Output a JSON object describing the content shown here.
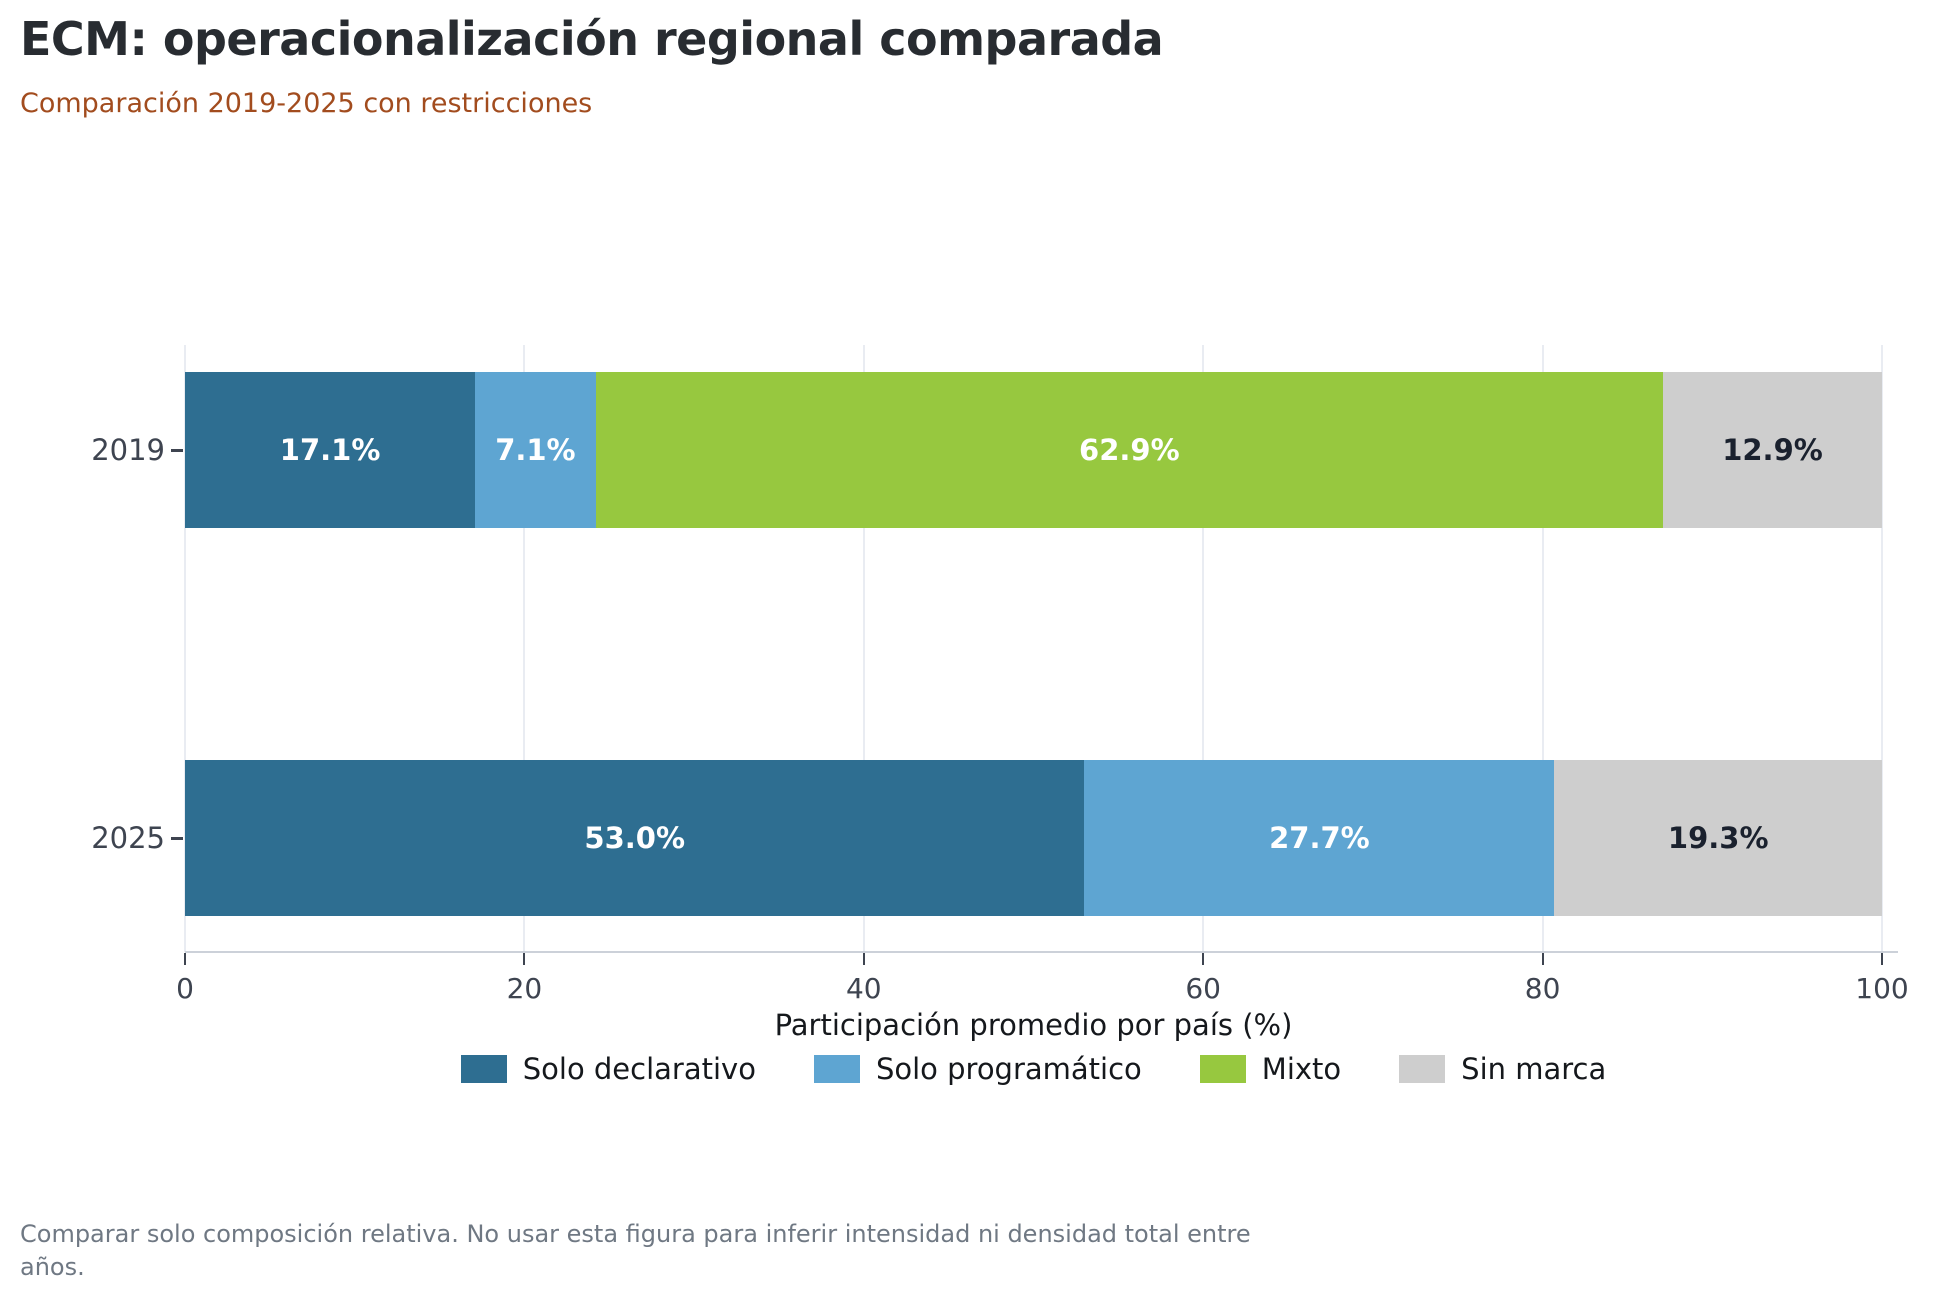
{
  "title": "ECM: operacionalización regional comparada",
  "subtitle": "Comparación 2019-2025 con restricciones",
  "footer": "Comparar solo composición relativa. No usar esta figura para inferir intensidad ni densidad total entre años.",
  "colors": {
    "title_text": "#282c31",
    "subtitle_text": "#a24c1e",
    "axis_text": "#3e4450",
    "gridline": "#e9ecf2",
    "axis_line": "#ccd1d9",
    "footer_text": "#6f7883"
  },
  "chart_data": {
    "type": "bar",
    "orientation": "horizontal",
    "stacked": true,
    "title": "ECM: operacionalización regional comparada",
    "subtitle": "Comparación 2019-2025 con restricciones",
    "categories": [
      "2019",
      "2025"
    ],
    "series": [
      {
        "name": "Solo declarativo",
        "color": "#2e6e91",
        "label_color": "#ffffff",
        "values": [
          17.1,
          53.0
        ]
      },
      {
        "name": "Solo programático",
        "color": "#5ea5d2",
        "label_color": "#ffffff",
        "values": [
          7.1,
          27.7
        ]
      },
      {
        "name": "Mixto",
        "color": "#97c83f",
        "label_color": "#ffffff",
        "values": [
          62.9,
          0.0
        ]
      },
      {
        "name": "Sin marca",
        "color": "#cecece",
        "label_color": "#1a212e",
        "values": [
          12.9,
          19.3
        ]
      }
    ],
    "segment_labels": [
      [
        "17.1%",
        "7.1%",
        "62.9%",
        "12.9%"
      ],
      [
        "53.0%",
        "27.7%",
        "",
        "19.3%"
      ]
    ],
    "xlabel": "Participación promedio por país (%)",
    "xlim": [
      0,
      100
    ],
    "xticks": [
      0,
      20,
      40,
      60,
      80,
      100
    ],
    "grid": true,
    "legend_position": "bottom"
  }
}
